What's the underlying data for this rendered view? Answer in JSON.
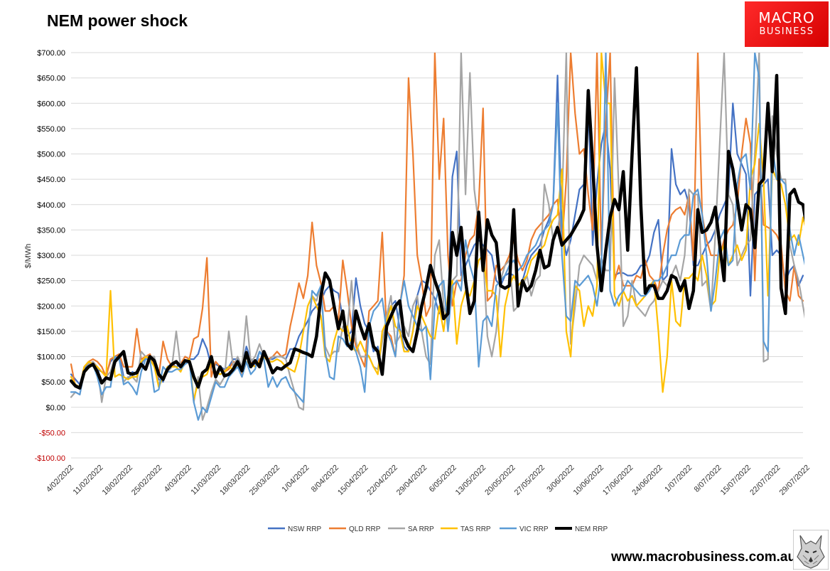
{
  "header": {
    "title": "NEM power shock",
    "logo_line1": "MACRO",
    "logo_line2": "BUSINESS"
  },
  "footer": {
    "url": "www.macrobusiness.com.au"
  },
  "chart_data": {
    "type": "line",
    "title": "NEM power shock",
    "ylabel": "$/MWh",
    "ylim": [
      -100,
      700
    ],
    "ytick_step": 50,
    "grid": true,
    "legend_position": "bottom",
    "date_range": [
      "2022-02-04",
      "2022-07-28"
    ],
    "x_tick_labels": [
      "4/02/2022",
      "11/02/2022",
      "18/02/2022",
      "25/02/2022",
      "4/03/2022",
      "11/03/2022",
      "18/03/2022",
      "25/03/2022",
      "1/04/2022",
      "8/04/2022",
      "15/04/2022",
      "22/04/2022",
      "29/04/2022",
      "6/05/2022",
      "13/05/2022",
      "20/05/2022",
      "27/05/2022",
      "3/06/2022",
      "10/06/2022",
      "17/06/2022",
      "24/06/2022",
      "1/07/2022",
      "8/07/2022",
      "15/07/2022",
      "22/07/2022",
      "29/07/2022"
    ],
    "series": [
      {
        "name": "NSW RRP",
        "color": "#4472c4",
        "width": 2.2,
        "values": [
          65,
          55,
          45,
          75,
          88,
          85,
          75,
          70,
          65,
          90,
          100,
          105,
          60,
          55,
          70,
          65,
          85,
          100,
          95,
          90,
          55,
          50,
          80,
          85,
          80,
          85,
          100,
          95,
          95,
          105,
          135,
          115,
          80,
          85,
          80,
          75,
          80,
          95,
          95,
          80,
          120,
          95,
          85,
          110,
          100,
          95,
          95,
          100,
          100,
          95,
          115,
          115,
          140,
          155,
          170,
          190,
          200,
          210,
          230,
          240,
          230,
          225,
          175,
          140,
          150,
          255,
          200,
          165,
          150,
          110,
          120,
          65,
          180,
          200,
          210,
          155,
          120,
          110,
          150,
          220,
          250,
          245,
          230,
          215,
          185,
          195,
          190,
          455,
          505,
          260,
          280,
          300,
          320,
          330,
          320,
          310,
          300,
          250,
          240,
          260,
          265,
          260,
          240,
          250,
          280,
          300,
          310,
          320,
          350,
          370,
          400,
          655,
          350,
          300,
          330,
          380,
          430,
          440,
          610,
          320,
          440,
          520,
          560,
          470,
          260,
          265,
          265,
          260,
          260,
          265,
          280,
          280,
          300,
          345,
          370,
          250,
          260,
          510,
          440,
          420,
          430,
          400,
          280,
          280,
          300,
          320,
          330,
          350,
          380,
          400,
          420,
          600,
          500,
          480,
          460,
          220,
          420,
          430,
          440,
          450,
          300,
          310,
          300,
          250,
          270,
          280,
          240,
          260
        ]
      },
      {
        "name": "QLD RRP",
        "color": "#ed7d31",
        "width": 2.2,
        "values": [
          85,
          40,
          40,
          80,
          90,
          95,
          90,
          80,
          60,
          95,
          100,
          105,
          80,
          80,
          80,
          155,
          95,
          100,
          105,
          80,
          60,
          130,
          95,
          80,
          90,
          85,
          100,
          95,
          135,
          140,
          195,
          295,
          60,
          90,
          80,
          70,
          75,
          90,
          85,
          60,
          110,
          90,
          80,
          95,
          100,
          95,
          100,
          110,
          100,
          105,
          160,
          200,
          245,
          215,
          260,
          365,
          280,
          245,
          190,
          190,
          200,
          170,
          290,
          230,
          160,
          120,
          100,
          80,
          190,
          200,
          210,
          345,
          150,
          140,
          100,
          200,
          260,
          650,
          500,
          300,
          250,
          180,
          200,
          700,
          450,
          570,
          300,
          200,
          250,
          250,
          300,
          330,
          340,
          400,
          590,
          210,
          220,
          280,
          270,
          280,
          300,
          330,
          290,
          270,
          290,
          330,
          350,
          360,
          370,
          380,
          400,
          410,
          320,
          450,
          700,
          580,
          500,
          510,
          420,
          350,
          700,
          300,
          560,
          700,
          250,
          280,
          240,
          240,
          240,
          260,
          255,
          290,
          260,
          250,
          230,
          300,
          350,
          380,
          390,
          395,
          380,
          420,
          290,
          700,
          380,
          330,
          300,
          300,
          300,
          330,
          350,
          360,
          400,
          500,
          570,
          520,
          250,
          490,
          360,
          355,
          350,
          340,
          320,
          230,
          210,
          280,
          220,
          210
        ]
      },
      {
        "name": "SA RRP",
        "color": "#a5a5a5",
        "width": 2.2,
        "values": [
          20,
          30,
          25,
          70,
          85,
          90,
          80,
          10,
          60,
          70,
          100,
          95,
          50,
          60,
          60,
          50,
          110,
          100,
          100,
          100,
          40,
          80,
          70,
          80,
          150,
          80,
          90,
          95,
          10,
          60,
          -25,
          0,
          30,
          55,
          45,
          60,
          150,
          80,
          100,
          80,
          180,
          90,
          100,
          125,
          100,
          90,
          100,
          100,
          100,
          95,
          60,
          30,
          0,
          -5,
          150,
          220,
          210,
          240,
          120,
          100,
          110,
          110,
          160,
          150,
          250,
          130,
          100,
          100,
          100,
          80,
          75,
          130,
          180,
          220,
          125,
          140,
          160,
          140,
          200,
          220,
          150,
          100,
          85,
          300,
          330,
          200,
          170,
          250,
          260,
          700,
          420,
          660,
          430,
          360,
          300,
          140,
          100,
          150,
          250,
          280,
          290,
          190,
          200,
          240,
          260,
          220,
          250,
          260,
          440,
          400,
          330,
          350,
          400,
          700,
          125,
          200,
          280,
          300,
          290,
          280,
          250,
          295,
          270,
          270,
          650,
          420,
          160,
          180,
          250,
          200,
          190,
          180,
          200,
          210,
          230,
          250,
          240,
          260,
          280,
          250,
          300,
          430,
          420,
          420,
          240,
          250,
          190,
          340,
          520,
          700,
          420,
          400,
          280,
          300,
          320,
          330,
          500,
          700,
          90,
          95,
          575,
          500,
          450,
          450,
          320,
          280,
          250,
          200,
          150,
          250,
          480
        ]
      },
      {
        "name": "TAS RRP",
        "color": "#ffc000",
        "width": 2.2,
        "values": [
          60,
          45,
          40,
          80,
          90,
          85,
          80,
          70,
          60,
          230,
          60,
          65,
          60,
          55,
          60,
          60,
          90,
          100,
          95,
          80,
          40,
          60,
          80,
          80,
          80,
          70,
          90,
          95,
          15,
          50,
          60,
          65,
          90,
          70,
          65,
          70,
          80,
          75,
          85,
          70,
          90,
          85,
          80,
          90,
          100,
          90,
          90,
          95,
          90,
          80,
          75,
          70,
          100,
          150,
          200,
          220,
          200,
          180,
          100,
          90,
          130,
          160,
          150,
          160,
          120,
          110,
          130,
          110,
          100,
          80,
          65,
          150,
          170,
          200,
          160,
          150,
          110,
          110,
          150,
          200,
          180,
          160,
          140,
          135,
          200,
          150,
          220,
          250,
          125,
          200,
          230,
          220,
          250,
          290,
          300,
          230,
          230,
          220,
          100,
          200,
          240,
          260,
          240,
          250,
          260,
          290,
          300,
          310,
          320,
          350,
          370,
          380,
          470,
          150,
          100,
          240,
          230,
          160,
          200,
          180,
          240,
          700,
          600,
          600,
          220,
          200,
          230,
          210,
          220,
          200,
          210,
          220,
          240,
          250,
          150,
          30,
          100,
          250,
          170,
          160,
          255,
          255,
          265,
          250,
          300,
          260,
          200,
          210,
          300,
          320,
          280,
          300,
          320,
          290,
          310,
          450,
          480,
          560,
          450,
          220,
          470,
          450,
          440,
          400,
          330,
          340,
          320,
          375,
          340,
          260,
          300,
          365
        ]
      },
      {
        "name": "VIC RRP",
        "color": "#5b9bd5",
        "width": 2.2,
        "values": [
          30,
          30,
          25,
          70,
          80,
          85,
          60,
          25,
          40,
          40,
          100,
          95,
          45,
          50,
          40,
          25,
          70,
          95,
          95,
          30,
          35,
          80,
          70,
          70,
          75,
          75,
          85,
          90,
          10,
          -25,
          0,
          -10,
          20,
          50,
          40,
          40,
          60,
          70,
          80,
          60,
          90,
          65,
          75,
          110,
          95,
          40,
          60,
          40,
          55,
          60,
          40,
          30,
          20,
          10,
          140,
          230,
          220,
          240,
          110,
          60,
          55,
          140,
          135,
          120,
          130,
          110,
          80,
          30,
          160,
          190,
          200,
          215,
          150,
          130,
          100,
          200,
          250,
          200,
          180,
          160,
          150,
          160,
          55,
          200,
          240,
          250,
          150,
          240,
          250,
          230,
          330,
          280,
          250,
          80,
          170,
          180,
          160,
          240,
          250,
          260,
          280,
          290,
          270,
          280,
          300,
          310,
          320,
          340,
          350,
          360,
          400,
          600,
          300,
          180,
          170,
          250,
          240,
          250,
          260,
          240,
          200,
          270,
          700,
          230,
          200,
          220,
          230,
          250,
          240,
          230,
          220,
          220,
          230,
          250,
          250,
          260,
          280,
          300,
          300,
          330,
          340,
          340,
          420,
          430,
          380,
          300,
          190,
          250,
          330,
          350,
          280,
          290,
          440,
          490,
          500,
          430,
          700,
          650,
          130,
          110,
          515,
          450,
          450,
          440,
          350,
          300,
          340,
          300,
          260,
          360,
          250,
          260
        ]
      },
      {
        "name": "NEM  RRP",
        "color": "#000000",
        "width": 4.5,
        "values": [
          52,
          42,
          38,
          70,
          80,
          85,
          70,
          48,
          58,
          55,
          90,
          100,
          110,
          68,
          65,
          68,
          85,
          75,
          100,
          92,
          65,
          55,
          75,
          85,
          90,
          80,
          92,
          90,
          60,
          40,
          68,
          75,
          100,
          60,
          80,
          62,
          65,
          75,
          90,
          72,
          108,
          80,
          92,
          80,
          110,
          90,
          68,
          78,
          75,
          82,
          88,
          115,
          112,
          108,
          105,
          100,
          140,
          220,
          265,
          250,
          200,
          155,
          190,
          125,
          115,
          190,
          160,
          135,
          165,
          120,
          110,
          65,
          160,
          180,
          200,
          210,
          140,
          120,
          110,
          150,
          200,
          235,
          280,
          250,
          225,
          175,
          185,
          345,
          300,
          355,
          250,
          185,
          210,
          385,
          270,
          370,
          340,
          325,
          240,
          235,
          240,
          390,
          200,
          250,
          230,
          240,
          270,
          310,
          275,
          280,
          330,
          355,
          320,
          330,
          340,
          355,
          370,
          390,
          625,
          480,
          320,
          230,
          310,
          375,
          410,
          390,
          465,
          310,
          500,
          670,
          400,
          225,
          240,
          240,
          215,
          215,
          230,
          260,
          255,
          230,
          250,
          195,
          230,
          390,
          345,
          350,
          365,
          395,
          320,
          250,
          505,
          470,
          410,
          350,
          400,
          390,
          315,
          440,
          450,
          600,
          465,
          655,
          235,
          185,
          420,
          430,
          405,
          400,
          350,
          290,
          295,
          260,
          285,
          250,
          325
        ]
      }
    ]
  }
}
